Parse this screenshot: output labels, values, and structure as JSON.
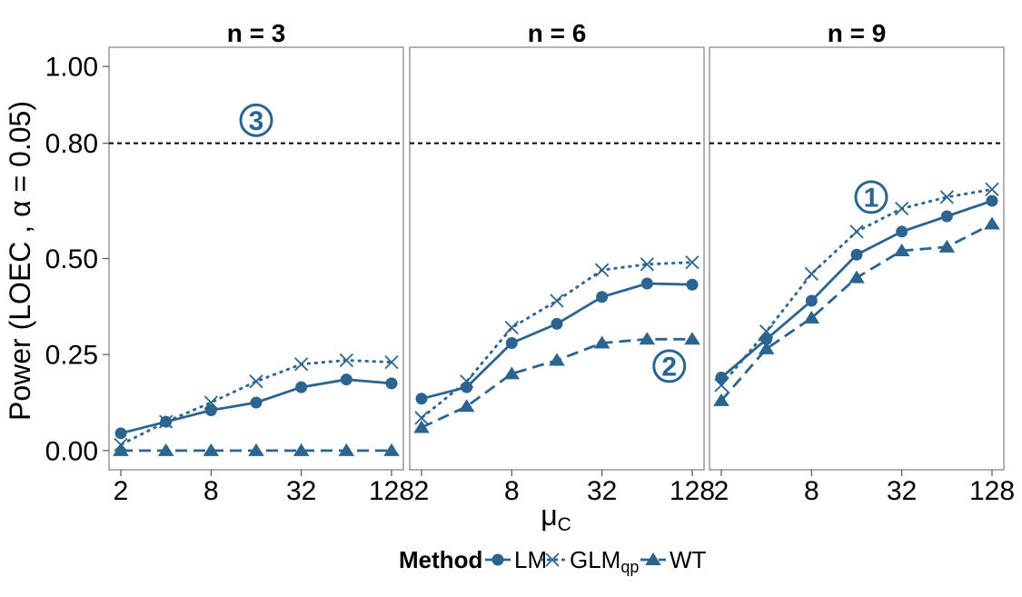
{
  "chart_data": {
    "type": "line",
    "ylabel": "Power (LOEC , α = 0.05)",
    "xlabel_main": "μ",
    "xlabel_sub": "C",
    "x_scale": "log2",
    "x": [
      2,
      4,
      8,
      16,
      32,
      64,
      128
    ],
    "x_ticks": [
      2,
      8,
      32,
      128
    ],
    "x_tick_labels": [
      "2",
      "8",
      "32",
      "128"
    ],
    "y_ticks": [
      0,
      0.25,
      0.5,
      0.8,
      1.0
    ],
    "y_tick_labels": [
      "0.00",
      "0.25",
      "0.50",
      "0.80",
      "1.00"
    ],
    "ylim": [
      -0.05,
      1.05
    ],
    "reference_line": 0.8,
    "grid": false,
    "legend_position": "bottom",
    "legend_title": "Method",
    "color": "#2c6490",
    "series_styles": [
      {
        "name": "LM",
        "label_main": "LM",
        "label_sub": "",
        "marker": "circle",
        "dash": "solid"
      },
      {
        "name": "GLMqp",
        "label_main": "GLM",
        "label_sub": "qp",
        "marker": "x",
        "dash": "dotted"
      },
      {
        "name": "WT",
        "label_main": "WT",
        "label_sub": "",
        "marker": "triangle",
        "dash": "dashed"
      }
    ],
    "panels": [
      {
        "title": "n = 3",
        "series": [
          {
            "name": "LM",
            "values": [
              0.045,
              0.075,
              0.105,
              0.125,
              0.165,
              0.185,
              0.175
            ]
          },
          {
            "name": "GLMqp",
            "values": [
              0.015,
              0.075,
              0.125,
              0.18,
              0.225,
              0.235,
              0.23
            ]
          },
          {
            "name": "WT",
            "values": [
              0.0,
              0.0,
              0.0,
              0.0,
              0.0,
              0.0,
              0.0
            ]
          }
        ],
        "annotation": {
          "label": "3",
          "x": 16,
          "y": 0.86
        }
      },
      {
        "title": "n = 6",
        "series": [
          {
            "name": "LM",
            "values": [
              0.135,
              0.165,
              0.28,
              0.33,
              0.4,
              0.435,
              0.432
            ]
          },
          {
            "name": "GLMqp",
            "values": [
              0.085,
              0.18,
              0.32,
              0.39,
              0.47,
              0.485,
              0.49
            ]
          },
          {
            "name": "WT",
            "values": [
              0.06,
              0.115,
              0.2,
              0.235,
              0.28,
              0.29,
              0.29
            ]
          }
        ],
        "annotation": {
          "label": "2",
          "x": 90,
          "y": 0.22
        }
      },
      {
        "title": "n = 9",
        "series": [
          {
            "name": "LM",
            "values": [
              0.19,
              0.29,
              0.39,
              0.51,
              0.57,
              0.61,
              0.65
            ]
          },
          {
            "name": "GLMqp",
            "values": [
              0.17,
              0.31,
              0.46,
              0.57,
              0.63,
              0.66,
              0.68
            ]
          },
          {
            "name": "WT",
            "values": [
              0.13,
              0.265,
              0.345,
              0.45,
              0.52,
              0.53,
              0.59
            ]
          }
        ],
        "annotation": {
          "label": "1",
          "x": 20,
          "y": 0.66
        }
      }
    ]
  }
}
